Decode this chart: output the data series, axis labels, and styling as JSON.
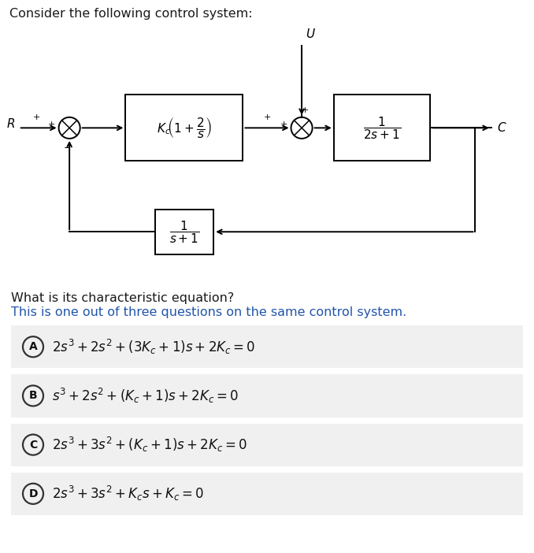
{
  "title": "Consider the following control system:",
  "question": "What is its characteristic equation?",
  "subtitle": "This is one out of three questions on the same control system.",
  "white": "#ffffff",
  "option_bg": "#f0f0f0",
  "page_bg": "#ffffff",
  "options": [
    {
      "label": "A",
      "eq": "$2s^3 + 2s^2 + (3K_c + 1)s + 2K_c = 0$"
    },
    {
      "label": "B",
      "eq": "$s^3 + 2s^2 + (K_c + 1)s + 2K_c = 0$"
    },
    {
      "label": "C",
      "eq": "$2s^3 + 3s^2 + (K_c + 1)s + 2K_c = 0$"
    },
    {
      "label": "D",
      "eq": "$2s^3 + 3s^2 + K_c s + K_c = 0$"
    }
  ],
  "controller_label": "$K_c\\!\\left(1+\\dfrac{2}{s}\\right)$",
  "plant_label": "$\\dfrac{1}{2s+1}$",
  "feedback_label": "$\\dfrac{1}{s+1}$",
  "R_label": "$R$",
  "C_label": "$C$",
  "U_label": "$U$",
  "title_color": "#1a1a1a",
  "question_color": "#1a1a1a",
  "subtitle_color": "#2255aa"
}
